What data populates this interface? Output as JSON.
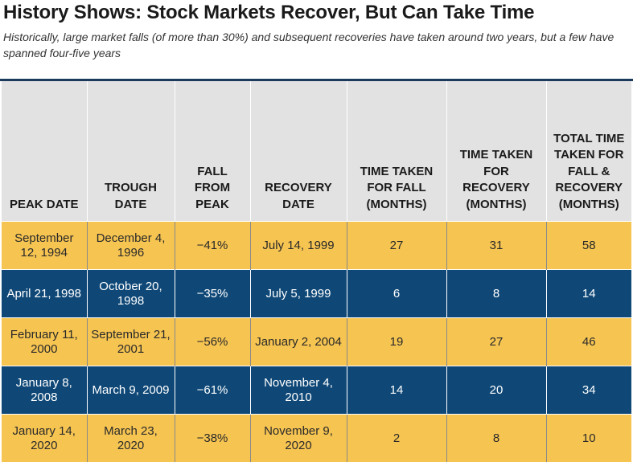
{
  "title": "History Shows: Stock Markets Recover, But Can Take Time",
  "subtitle": "Historically, large market falls (of more than 30%) and subsequent recoveries have taken around two years, but a few have spanned four-five years",
  "colors": {
    "header_bg": "#e2e2e2",
    "row_gold": "#f6c451",
    "row_navy": "#0f4877"
  },
  "columns": [
    "PEAK DATE",
    "TROUGH DATE",
    "FALL FROM PEAK",
    "RECOVERY DATE",
    "TIME TAKEN FOR FALL (MONTHS)",
    "TIME TAKEN FOR RECOVERY (MONTHS)",
    "TOTAL TIME TAKEN FOR FALL & RECOVERY (MONTHS)"
  ],
  "rows": [
    [
      "September 12, 1994",
      "December 4, 1996",
      "−41%",
      "July 14, 1999",
      "27",
      "31",
      "58"
    ],
    [
      "April 21, 1998",
      "October 20, 1998",
      "−35%",
      "July 5, 1999",
      "6",
      "8",
      "14"
    ],
    [
      "February 11, 2000",
      "September 21, 2001",
      "−56%",
      "January 2, 2004",
      "19",
      "27",
      "46"
    ],
    [
      "January 8, 2008",
      "March 9, 2009",
      "−61%",
      "November 4, 2010",
      "14",
      "20",
      "34"
    ],
    [
      "January 14, 2020",
      "March 23, 2020",
      "−38%",
      "November 9, 2020",
      "2",
      "8",
      "10"
    ]
  ]
}
